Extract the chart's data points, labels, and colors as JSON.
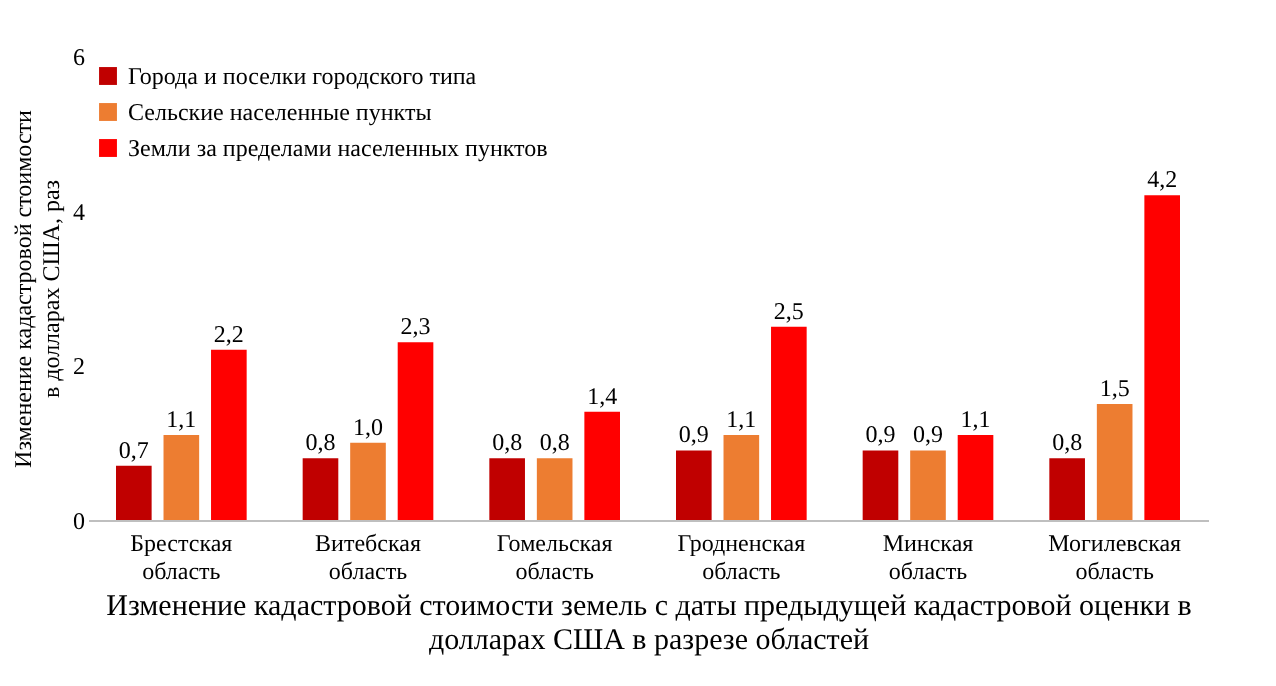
{
  "chart_data": {
    "type": "bar",
    "xlabel": "Изменение кадастровой стоимости земель с даты предыдущей кадастровой оценки в долларах США в разрезе областей",
    "ylabel": "Изменение кадастровой стоимости в долларах США, раз",
    "categories": [
      "Брестская область",
      "Витебская область",
      "Гомельская область",
      "Гродненская область",
      "Минская область",
      "Могилевская область"
    ],
    "series": [
      {
        "name": "Города и поселки городского типа",
        "color": "#c00000",
        "values": [
          0.7,
          0.8,
          0.8,
          0.9,
          0.9,
          0.8
        ],
        "value_labels": [
          "0,7",
          "0,8",
          "0,8",
          "0,9",
          "0,9",
          "0,8"
        ]
      },
      {
        "name": "Сельские населенные пункты",
        "color": "#ed7d31",
        "values": [
          1.1,
          1.0,
          0.8,
          1.1,
          0.9,
          1.5
        ],
        "value_labels": [
          "1,1",
          "1,0",
          "0,8",
          "1,1",
          "0,9",
          "1,5"
        ]
      },
      {
        "name": "Земли за пределами населенных пунктов",
        "color": "#ff0000",
        "values": [
          2.2,
          2.3,
          1.4,
          2.5,
          1.1,
          4.2
        ],
        "value_labels": [
          "2,2",
          "2,3",
          "1,4",
          "2,5",
          "1,1",
          "4,2"
        ]
      }
    ],
    "ylim": [
      0,
      6
    ],
    "yticks": [
      0,
      2,
      4,
      6
    ],
    "grid": false,
    "legend": "top left"
  }
}
